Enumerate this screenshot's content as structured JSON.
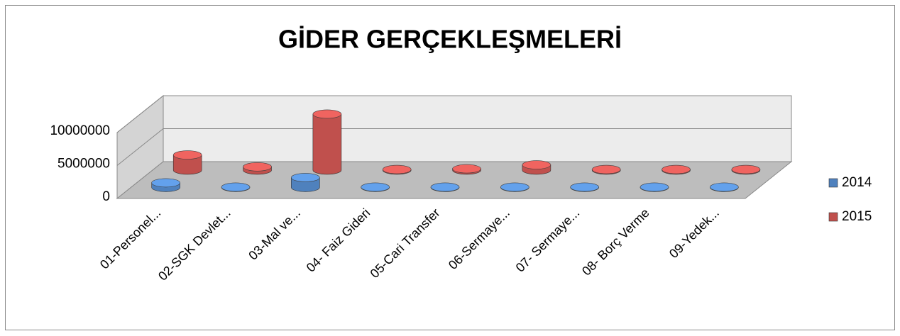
{
  "chart_data": {
    "type": "bar3d",
    "title": "GİDER GERÇEKLEŞMELERİ",
    "categories": [
      "01-Personel...",
      "02-SGK Devlet...",
      "03-Mal ve...",
      "04- Faiz Gideri",
      "05-Cari Transfer",
      "06-Sermaye...",
      "07- Sermaye...",
      "08- Borç Verme",
      "09-Yedek..."
    ],
    "series": [
      {
        "name": "2014",
        "color": "#4f81bd",
        "values": [
          700000,
          50000,
          1500000,
          50000,
          50000,
          50000,
          50000,
          50000,
          50000
        ]
      },
      {
        "name": "2015",
        "color": "#c0504d",
        "values": [
          2300000,
          500000,
          8500000,
          100000,
          200000,
          800000,
          100000,
          100000,
          100000
        ]
      }
    ],
    "ylim": [
      0,
      10000000
    ],
    "yticks": [
      0,
      5000000,
      10000000
    ],
    "grid": true,
    "legend": "right"
  }
}
